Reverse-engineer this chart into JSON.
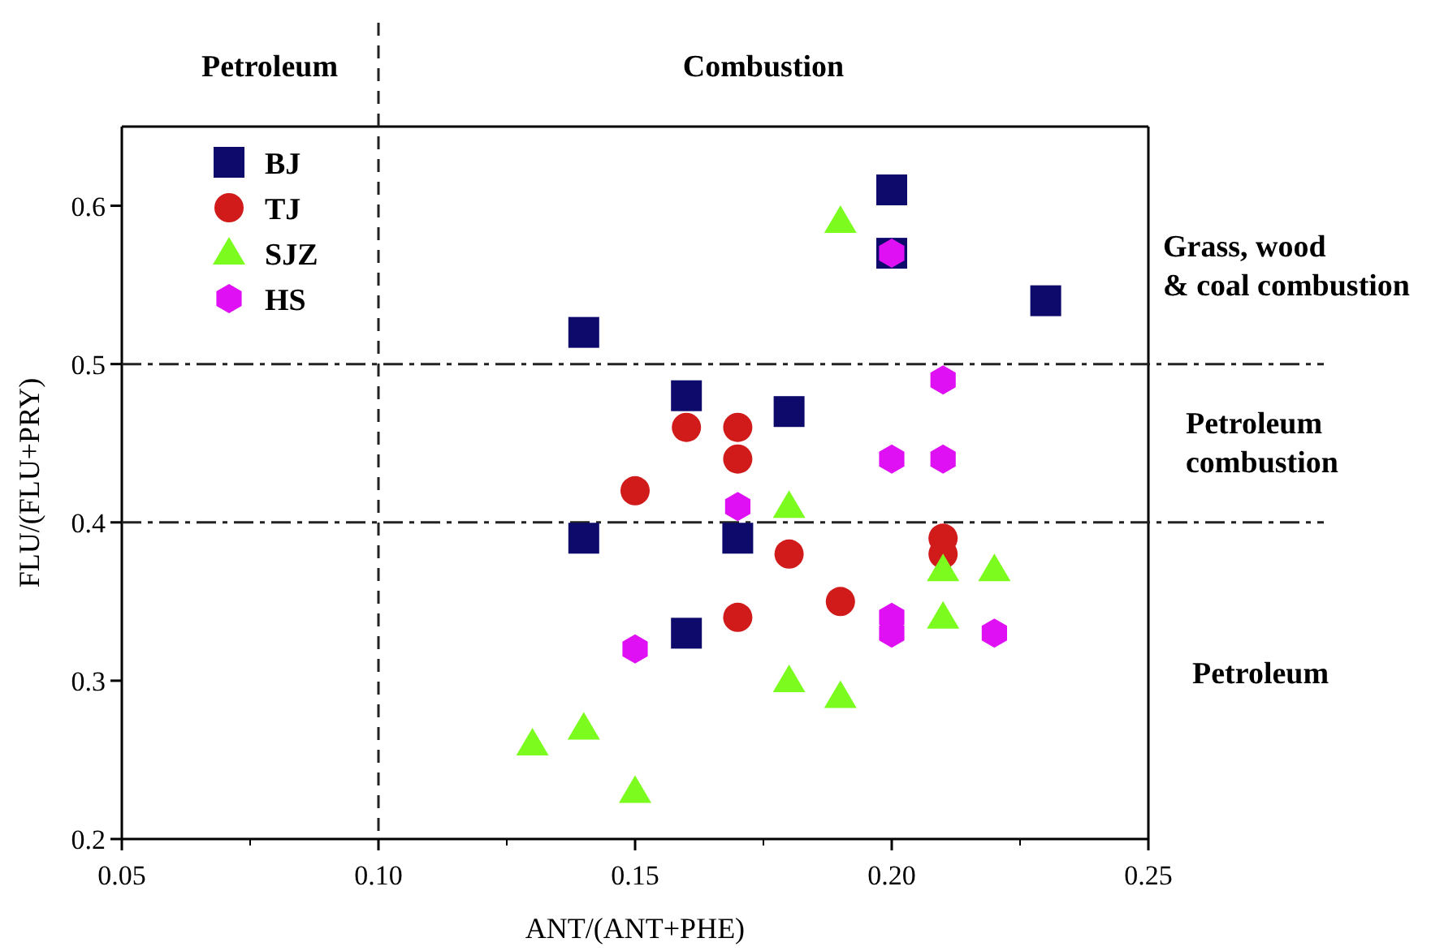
{
  "chart_data": {
    "type": "scatter",
    "xlabel": "ANT/(ANT+PHE)",
    "ylabel": "FLU/(FLU+PRY)",
    "xlim": [
      0.05,
      0.25
    ],
    "xticks": [
      {
        "value": 0.05,
        "label": "0.05"
      },
      {
        "value": 0.1,
        "label": "0.10"
      },
      {
        "value": 0.15,
        "label": "0.15"
      },
      {
        "value": 0.2,
        "label": "0.20"
      },
      {
        "value": 0.25,
        "label": "0.25"
      }
    ],
    "ylim": [
      0.2,
      0.65
    ],
    "yticks": [
      0.2,
      0.3,
      0.4,
      0.5,
      0.6
    ],
    "legend": "top left",
    "grid": false,
    "ref_lines": [
      {
        "axis": "x",
        "value": 0.1,
        "line_style": "dashed"
      },
      {
        "axis": "y",
        "value": 0.5,
        "line_style": "dashdot"
      },
      {
        "axis": "y",
        "value": 0.4,
        "line_style": "dashdot"
      }
    ],
    "annotations": [
      "Petroleum",
      "Combustion",
      "Grass, wood\n& coal combustion",
      "Petroleum\ncombustion",
      "Petroleum"
    ],
    "series": [
      {
        "name": "BJ",
        "color": "#0d0a6b",
        "marker": "square",
        "x": [
          0.2,
          0.2,
          0.23,
          0.14,
          0.16,
          0.18,
          0.14,
          0.17,
          0.16
        ],
        "values": [
          0.61,
          0.57,
          0.54,
          0.52,
          0.48,
          0.47,
          0.39,
          0.39,
          0.33
        ]
      },
      {
        "name": "TJ",
        "color": "#d11a1a",
        "marker": "circle",
        "x": [
          0.16,
          0.17,
          0.17,
          0.15,
          0.21,
          0.21,
          0.18,
          0.19,
          0.17
        ],
        "values": [
          0.46,
          0.46,
          0.44,
          0.42,
          0.39,
          0.38,
          0.38,
          0.35,
          0.34
        ]
      },
      {
        "name": "SJZ",
        "color": "#7cfc1e",
        "marker": "triangle",
        "x": [
          0.19,
          0.18,
          0.21,
          0.22,
          0.21,
          0.18,
          0.19,
          0.14,
          0.13,
          0.15
        ],
        "values": [
          0.59,
          0.41,
          0.37,
          0.37,
          0.34,
          0.3,
          0.29,
          0.27,
          0.26,
          0.23
        ]
      },
      {
        "name": "HS",
        "color": "#e010f5",
        "x": [
          0.2,
          0.21,
          0.2,
          0.21,
          0.17,
          0.2,
          0.2,
          0.22,
          0.15
        ],
        "values": [
          0.57,
          0.49,
          0.44,
          0.44,
          0.41,
          0.34,
          0.33,
          0.33,
          0.32
        ]
      }
    ]
  }
}
